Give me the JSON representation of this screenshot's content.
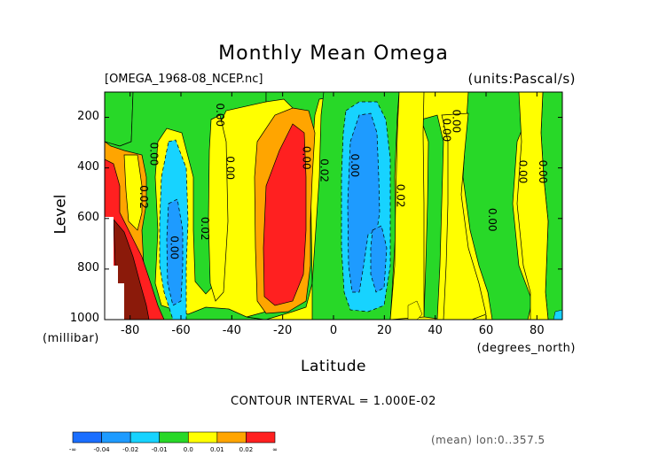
{
  "chart_data": {
    "type": "heatmap",
    "title": "Monthly Mean Omega",
    "subtitle_left": "[OMEGA_1968-08_NCEP.nc]",
    "subtitle_right": "(units:Pascal/s)",
    "xlabel": "Latitude",
    "xunits": "(degrees_north)",
    "ylabel": "Level",
    "yunits": "(millibar)",
    "x_ticks": [
      "-80",
      "-60",
      "-40",
      "-20",
      "0",
      "20",
      "40",
      "60",
      "80"
    ],
    "x_tick_values": [
      -80,
      -60,
      -40,
      -20,
      0,
      20,
      40,
      60,
      80
    ],
    "y_ticks": [
      "200",
      "400",
      "600",
      "800",
      "1000"
    ],
    "y_tick_values": [
      200,
      400,
      600,
      800,
      1000
    ],
    "xlim": [
      -90,
      90
    ],
    "ylim": [
      1000,
      100
    ],
    "contour_interval": "CONTOUR INTERVAL = 1.000E-02",
    "mean_note": "(mean) lon:0..357.5",
    "contour_labels": [
      "0.00",
      "0.02",
      "0.00",
      "0.02",
      "0.00",
      "0.00",
      "0.02",
      "0.00",
      "0.02",
      "0.00",
      "0.00",
      "0.00",
      "0.00",
      "0.00",
      "0.00"
    ],
    "colorbar": {
      "labels": [
        "-∞",
        "-0.04",
        "-0.02",
        "-0.01",
        "0.0",
        "0.01",
        "0.02",
        "∞"
      ],
      "colors": [
        "#1a6eff",
        "#1e9bff",
        "#17d3ff",
        "#28d828",
        "#ffff00",
        "#ffa500",
        "#ff2020"
      ]
    }
  },
  "colors": {
    "strong_neg": "#1a6eff",
    "neg": "#1e9bff",
    "weak_neg": "#17d3ff",
    "near_zero": "#28d828",
    "weak_pos": "#ffff00",
    "pos": "#ffa500",
    "strong_pos": "#ff2020",
    "very_strong_pos": "#8b1a0a"
  }
}
